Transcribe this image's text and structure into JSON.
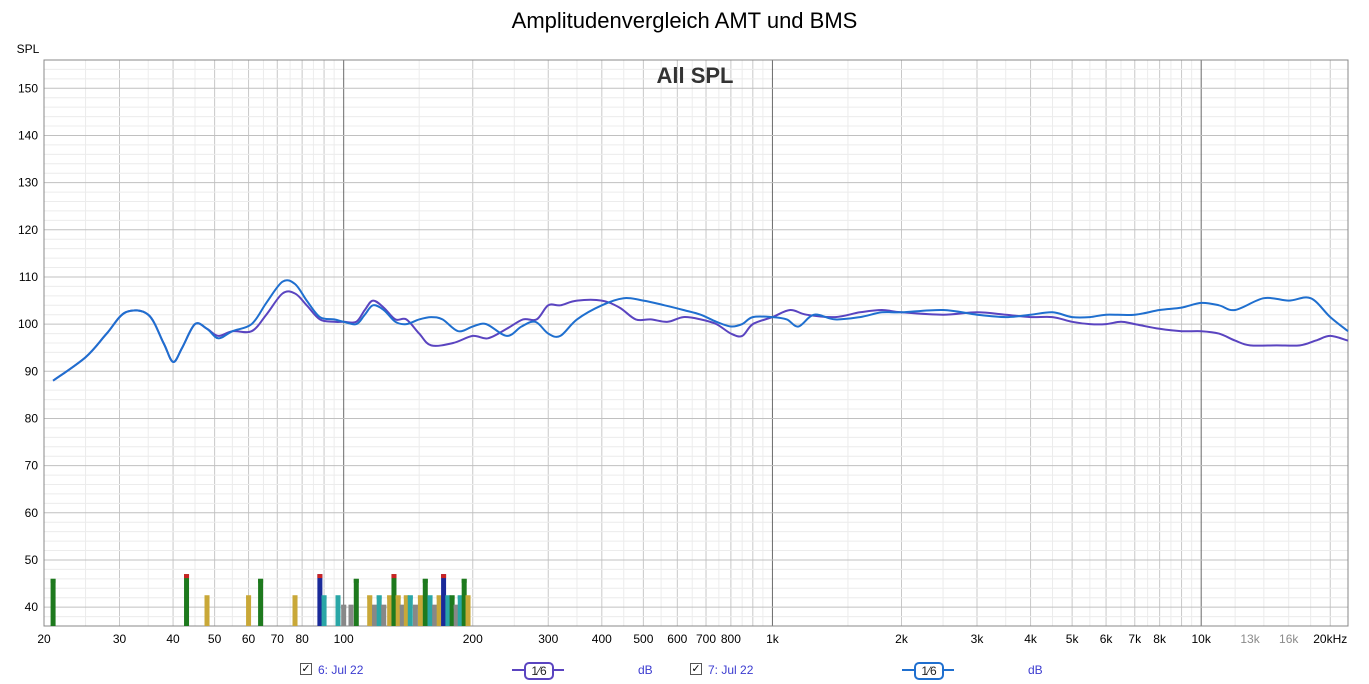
{
  "title": "Amplitudenvergleich AMT und BMS",
  "chart_data": {
    "type": "line",
    "title": "Amplitudenvergleich AMT und BMS",
    "overlay_label": "All SPL",
    "ylabel": "SPL",
    "xlabel": "",
    "xscale": "log",
    "xlim": [
      20,
      22000
    ],
    "ylim": [
      36,
      156
    ],
    "grid": true,
    "y_ticks": [
      40,
      50,
      60,
      70,
      80,
      90,
      100,
      110,
      120,
      130,
      140,
      150
    ],
    "x_ticks": [
      {
        "f": 20,
        "label": "20"
      },
      {
        "f": 30,
        "label": "30"
      },
      {
        "f": 40,
        "label": "40"
      },
      {
        "f": 50,
        "label": "50"
      },
      {
        "f": 60,
        "label": "60"
      },
      {
        "f": 70,
        "label": "70"
      },
      {
        "f": 80,
        "label": "80"
      },
      {
        "f": 100,
        "label": "100"
      },
      {
        "f": 200,
        "label": "200"
      },
      {
        "f": 300,
        "label": "300"
      },
      {
        "f": 400,
        "label": "400"
      },
      {
        "f": 500,
        "label": "500"
      },
      {
        "f": 600,
        "label": "600"
      },
      {
        "f": 700,
        "label": "700"
      },
      {
        "f": 800,
        "label": "800"
      },
      {
        "f": 1000,
        "label": "1k"
      },
      {
        "f": 2000,
        "label": "2k"
      },
      {
        "f": 3000,
        "label": "3k"
      },
      {
        "f": 4000,
        "label": "4k"
      },
      {
        "f": 5000,
        "label": "5k"
      },
      {
        "f": 6000,
        "label": "6k"
      },
      {
        "f": 7000,
        "label": "7k"
      },
      {
        "f": 8000,
        "label": "8k"
      },
      {
        "f": 10000,
        "label": "10k"
      },
      {
        "f": 13000,
        "label": "13k",
        "muted": true
      },
      {
        "f": 16000,
        "label": "16k",
        "muted": true
      },
      {
        "f": 20000,
        "label": "20kHz"
      }
    ],
    "series": [
      {
        "name": "6: Jul 22",
        "color": "#5a44c0",
        "points": [
          [
            21,
            88
          ],
          [
            25,
            93
          ],
          [
            28,
            98
          ],
          [
            31,
            102.5
          ],
          [
            35,
            102
          ],
          [
            38,
            96
          ],
          [
            40,
            92
          ],
          [
            42,
            95
          ],
          [
            45,
            100
          ],
          [
            48,
            99
          ],
          [
            51,
            97.5
          ],
          [
            55,
            98.5
          ],
          [
            61,
            98.5
          ],
          [
            66,
            102
          ],
          [
            72,
            106.5
          ],
          [
            77,
            106.5
          ],
          [
            82,
            104
          ],
          [
            88,
            101
          ],
          [
            95,
            100.5
          ],
          [
            100,
            100.5
          ],
          [
            107,
            100.5
          ],
          [
            112,
            103
          ],
          [
            117,
            105
          ],
          [
            124,
            103.5
          ],
          [
            132,
            101
          ],
          [
            140,
            101
          ],
          [
            150,
            98
          ],
          [
            160,
            95.5
          ],
          [
            180,
            96
          ],
          [
            200,
            97.5
          ],
          [
            217,
            97
          ],
          [
            240,
            99
          ],
          [
            262,
            101
          ],
          [
            282,
            101
          ],
          [
            300,
            104
          ],
          [
            320,
            104
          ],
          [
            350,
            105
          ],
          [
            400,
            105
          ],
          [
            440,
            103.5
          ],
          [
            480,
            101
          ],
          [
            520,
            101
          ],
          [
            570,
            100.5
          ],
          [
            620,
            101.5
          ],
          [
            680,
            101
          ],
          [
            740,
            100
          ],
          [
            800,
            98
          ],
          [
            850,
            97.5
          ],
          [
            900,
            100
          ],
          [
            1000,
            101.5
          ],
          [
            1100,
            103
          ],
          [
            1200,
            102
          ],
          [
            1400,
            101.5
          ],
          [
            1600,
            102.5
          ],
          [
            1800,
            103
          ],
          [
            2000,
            102.5
          ],
          [
            2500,
            102
          ],
          [
            3000,
            102.5
          ],
          [
            3500,
            102
          ],
          [
            4000,
            101.5
          ],
          [
            4500,
            101.5
          ],
          [
            5000,
            100.5
          ],
          [
            5500,
            100
          ],
          [
            6000,
            100
          ],
          [
            6500,
            100.5
          ],
          [
            7000,
            100
          ],
          [
            8000,
            99
          ],
          [
            9000,
            98.5
          ],
          [
            10000,
            98.5
          ],
          [
            11000,
            98
          ],
          [
            12000,
            96.5
          ],
          [
            13000,
            95.5
          ],
          [
            15000,
            95.5
          ],
          [
            17000,
            95.5
          ],
          [
            18500,
            96.5
          ],
          [
            20000,
            97.5
          ],
          [
            22000,
            96.5
          ]
        ]
      },
      {
        "name": "7: Jul 22",
        "color": "#1f6fcf",
        "points": [
          [
            21,
            88
          ],
          [
            25,
            93
          ],
          [
            28,
            98
          ],
          [
            31,
            102.5
          ],
          [
            35,
            102
          ],
          [
            38,
            96
          ],
          [
            40,
            92
          ],
          [
            42,
            95
          ],
          [
            45,
            100
          ],
          [
            48,
            99
          ],
          [
            51,
            97
          ],
          [
            55,
            98.5
          ],
          [
            61,
            100
          ],
          [
            66,
            104.5
          ],
          [
            72,
            109
          ],
          [
            77,
            108.5
          ],
          [
            82,
            105
          ],
          [
            88,
            101.5
          ],
          [
            95,
            101
          ],
          [
            100,
            100.5
          ],
          [
            107,
            100
          ],
          [
            112,
            102
          ],
          [
            117,
            104
          ],
          [
            124,
            103
          ],
          [
            132,
            100.5
          ],
          [
            140,
            100
          ],
          [
            150,
            101
          ],
          [
            160,
            101.5
          ],
          [
            170,
            101
          ],
          [
            185,
            98.5
          ],
          [
            200,
            99.5
          ],
          [
            215,
            100
          ],
          [
            240,
            97.5
          ],
          [
            260,
            99.5
          ],
          [
            280,
            100.5
          ],
          [
            300,
            98
          ],
          [
            320,
            97.5
          ],
          [
            350,
            101
          ],
          [
            400,
            104
          ],
          [
            450,
            105.5
          ],
          [
            500,
            105
          ],
          [
            560,
            104
          ],
          [
            620,
            103
          ],
          [
            680,
            102
          ],
          [
            740,
            100.5
          ],
          [
            800,
            99.5
          ],
          [
            850,
            100
          ],
          [
            900,
            101.5
          ],
          [
            1000,
            101.5
          ],
          [
            1080,
            101
          ],
          [
            1150,
            99.5
          ],
          [
            1250,
            102
          ],
          [
            1400,
            101
          ],
          [
            1600,
            101.5
          ],
          [
            1800,
            102.5
          ],
          [
            2000,
            102.5
          ],
          [
            2500,
            103
          ],
          [
            3000,
            102
          ],
          [
            3500,
            101.5
          ],
          [
            4000,
            102
          ],
          [
            4500,
            102.5
          ],
          [
            5000,
            101.5
          ],
          [
            5500,
            101.5
          ],
          [
            6000,
            102
          ],
          [
            7000,
            102
          ],
          [
            8000,
            103
          ],
          [
            9000,
            103.5
          ],
          [
            10000,
            104.5
          ],
          [
            11000,
            104
          ],
          [
            12000,
            103
          ],
          [
            14000,
            105.5
          ],
          [
            16000,
            105
          ],
          [
            18000,
            105.5
          ],
          [
            20000,
            101.5
          ],
          [
            22000,
            98.5
          ]
        ]
      }
    ],
    "marker_bars": [
      {
        "f": 21,
        "h": 46,
        "c": "#1e7a1e",
        "cap": "#1e7a1e"
      },
      {
        "f": 43,
        "h": 47,
        "c": "#1e7a1e",
        "cap": "#cc2222"
      },
      {
        "f": 48,
        "h": 42.5,
        "c": "#c9a838",
        "cap": "#c9a838"
      },
      {
        "f": 60,
        "h": 42.5,
        "c": "#c9a838",
        "cap": "#c9a838"
      },
      {
        "f": 64,
        "h": 46,
        "c": "#1e7a1e",
        "cap": "#1e7a1e"
      },
      {
        "f": 77,
        "h": 42.5,
        "c": "#c9a838",
        "cap": "#c9a838"
      },
      {
        "f": 88,
        "h": 47,
        "c": "#1a2a9a",
        "cap": "#cc2222"
      },
      {
        "f": 90,
        "h": 42.5,
        "c": "#2aa6a6",
        "cap": "#2aa6a6"
      },
      {
        "f": 97,
        "h": 42.5,
        "c": "#2aa6a6",
        "cap": "#2aa6a6"
      },
      {
        "f": 100,
        "h": 40.5,
        "c": "#888888",
        "cap": "#888888"
      },
      {
        "f": 104,
        "h": 40.5,
        "c": "#888888",
        "cap": "#888888"
      },
      {
        "f": 107,
        "h": 46,
        "c": "#1e7a1e",
        "cap": "#1e7a1e"
      },
      {
        "f": 115,
        "h": 42.5,
        "c": "#c9a838",
        "cap": "#c9a838"
      },
      {
        "f": 118,
        "h": 40.5,
        "c": "#888888",
        "cap": "#888888"
      },
      {
        "f": 121,
        "h": 42.5,
        "c": "#2aa6a6",
        "cap": "#2aa6a6"
      },
      {
        "f": 124,
        "h": 40.5,
        "c": "#888888",
        "cap": "#888888"
      },
      {
        "f": 128,
        "h": 42.5,
        "c": "#c9a838",
        "cap": "#c9a838"
      },
      {
        "f": 131,
        "h": 47,
        "c": "#1e7a1e",
        "cap": "#cc2222"
      },
      {
        "f": 134,
        "h": 42.5,
        "c": "#c9a838",
        "cap": "#c9a838"
      },
      {
        "f": 137,
        "h": 40.5,
        "c": "#888888",
        "cap": "#888888"
      },
      {
        "f": 140,
        "h": 42.5,
        "c": "#c9a838",
        "cap": "#c9a838"
      },
      {
        "f": 143,
        "h": 42.5,
        "c": "#2aa6a6",
        "cap": "#2aa6a6"
      },
      {
        "f": 147,
        "h": 40.5,
        "c": "#888888",
        "cap": "#888888"
      },
      {
        "f": 151,
        "h": 42.5,
        "c": "#c9a838",
        "cap": "#c9a838"
      },
      {
        "f": 155,
        "h": 46,
        "c": "#1e7a1e",
        "cap": "#1e7a1e"
      },
      {
        "f": 159,
        "h": 42.5,
        "c": "#2aa6a6",
        "cap": "#2aa6a6"
      },
      {
        "f": 163,
        "h": 40.5,
        "c": "#888888",
        "cap": "#888888"
      },
      {
        "f": 167,
        "h": 42.5,
        "c": "#c9a838",
        "cap": "#c9a838"
      },
      {
        "f": 171,
        "h": 47,
        "c": "#1a2a9a",
        "cap": "#cc2222"
      },
      {
        "f": 175,
        "h": 42.5,
        "c": "#2aa6a6",
        "cap": "#2aa6a6"
      },
      {
        "f": 179,
        "h": 42.5,
        "c": "#1e7a1e",
        "cap": "#1e7a1e"
      },
      {
        "f": 183,
        "h": 40.5,
        "c": "#888888",
        "cap": "#888888"
      },
      {
        "f": 187,
        "h": 42.5,
        "c": "#2aa6a6",
        "cap": "#2aa6a6"
      },
      {
        "f": 191,
        "h": 46,
        "c": "#1e7a1e",
        "cap": "#1e7a1e"
      },
      {
        "f": 195,
        "h": 42.5,
        "c": "#c9a838",
        "cap": "#c9a838"
      }
    ]
  },
  "legend": [
    {
      "checked": true,
      "check_glyph": "✓",
      "label": "6: Jul 22",
      "smoothing": "1⁄6",
      "unit": "dB",
      "color": "#5a44c0"
    },
    {
      "checked": true,
      "check_glyph": "✓",
      "label": "7: Jul 22",
      "smoothing": "1⁄6",
      "unit": "dB",
      "color": "#1f6fcf"
    }
  ]
}
